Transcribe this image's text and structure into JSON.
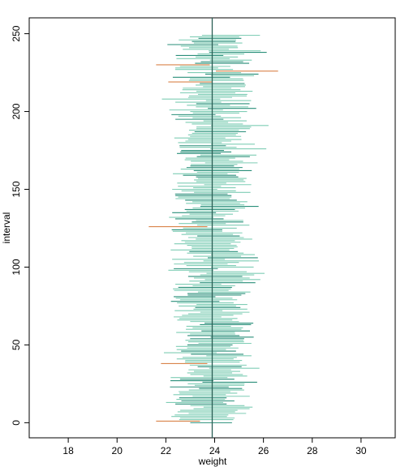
{
  "chart_data": {
    "type": "interval",
    "xlabel": "weight",
    "ylabel": "interval",
    "xlim": [
      16.4,
      31.4
    ],
    "ylim": [
      -9.7,
      260.2
    ],
    "x_ticks": [
      18,
      20,
      22,
      24,
      26,
      28,
      30
    ],
    "y_ticks": [
      0,
      50,
      100,
      150,
      200,
      250
    ],
    "reference_line": {
      "x": 23.9,
      "color": "#2b5f55"
    },
    "colors": {
      "covers": "#7fcdb5",
      "covers_dark": "#2a8f7a",
      "misses": "#d9834a"
    },
    "n_intervals": 250,
    "half_width_mean": 1.03,
    "missed_intervals": [
      {
        "index": 1,
        "lower": 21.6,
        "upper": 23.4
      },
      {
        "index": 38,
        "lower": 21.8,
        "upper": 23.7
      },
      {
        "index": 126,
        "lower": 21.3,
        "upper": 23.7
      },
      {
        "index": 219,
        "lower": 22.1,
        "upper": 23.9
      },
      {
        "index": 226,
        "lower": 24.05,
        "upper": 26.6
      },
      {
        "index": 230,
        "lower": 21.6,
        "upper": 23.8
      }
    ],
    "random_seed": 7
  }
}
